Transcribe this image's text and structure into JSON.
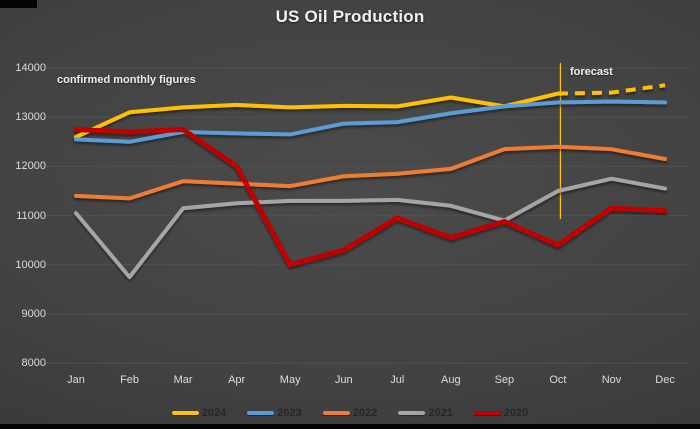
{
  "title": "US Oil Production",
  "annotations": {
    "confirmed": "confirmed monthly figures",
    "forecast": "forecast"
  },
  "colors": {
    "background": "#3f3f3f",
    "title_text": "#f2f2f2",
    "axis_text": "#dcdcdc",
    "legend_text": "#262626",
    "gridline": "#515151",
    "forecast_line": "#ffc000"
  },
  "chart_data": {
    "type": "line",
    "title": "US Oil Production",
    "xlabel": "",
    "ylabel": "",
    "ylim": [
      8000,
      14000
    ],
    "yticks": [
      8000,
      9000,
      10000,
      11000,
      12000,
      13000,
      14000
    ],
    "grid": "horizontal",
    "legend_position": "bottom",
    "categories": [
      "Jan",
      "Feb",
      "Mar",
      "Apr",
      "May",
      "Jun",
      "Jul",
      "Aug",
      "Sep",
      "Oct",
      "Nov",
      "Dec"
    ],
    "series": [
      {
        "name": "2024",
        "color": "#ffc000",
        "values": [
          12600,
          13100,
          13200,
          13250,
          13200,
          13230,
          13220,
          13400,
          13220,
          13480,
          13500,
          13650
        ],
        "dashed_from_index": 9
      },
      {
        "name": "2023",
        "color": "#5b9bd5",
        "values": [
          12550,
          12500,
          12700,
          12670,
          12650,
          12870,
          12900,
          13080,
          13220,
          13300,
          13320,
          13300
        ]
      },
      {
        "name": "2022",
        "color": "#ed7d31",
        "values": [
          11400,
          11350,
          11700,
          11650,
          11600,
          11800,
          11850,
          11950,
          12350,
          12400,
          12350,
          12150
        ]
      },
      {
        "name": "2021",
        "color": "#a5a5a5",
        "values": [
          11050,
          9750,
          11150,
          11250,
          11300,
          11300,
          11320,
          11200,
          10900,
          11500,
          11750,
          11550
        ]
      },
      {
        "name": "2020",
        "color": "#c00000",
        "values": [
          12750,
          12700,
          12750,
          12000,
          10000,
          10300,
          10950,
          10550,
          10880,
          10400,
          11150,
          11100
        ]
      }
    ],
    "vline_annotation": {
      "text": "forecast",
      "at_category": "Oct",
      "color": "#ffc000"
    },
    "text_annotation": {
      "text": "confirmed monthly figures",
      "near_category": "Jan"
    }
  },
  "legend": {
    "items": [
      {
        "label": "2024",
        "color": "#ffc000"
      },
      {
        "label": "2023",
        "color": "#5b9bd5"
      },
      {
        "label": "2022",
        "color": "#ed7d31"
      },
      {
        "label": "2021",
        "color": "#a5a5a5"
      },
      {
        "label": "2020",
        "color": "#c00000"
      }
    ]
  }
}
